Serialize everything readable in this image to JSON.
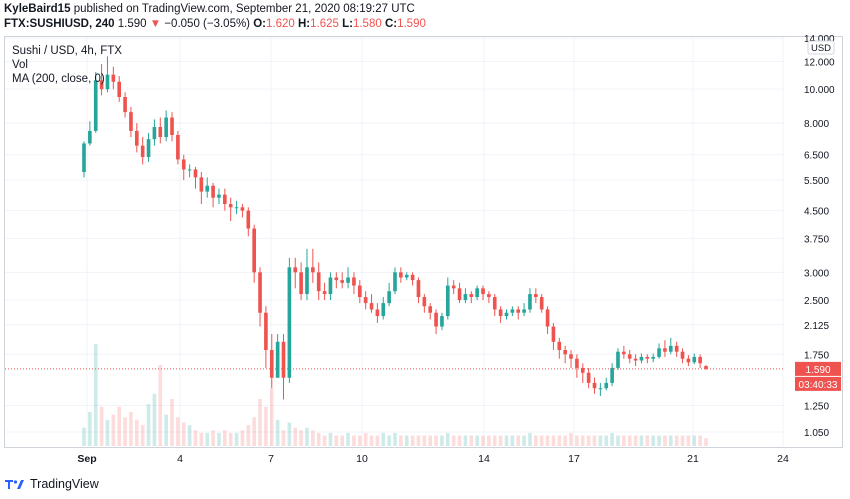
{
  "header": {
    "publisher": "KyleBaird15",
    "published_text": "published on TradingView.com, September 21, 2020 08:19:27 UTC"
  },
  "ohlc": {
    "symbol": "FTX:SUSHIUSD, 240",
    "last": "1.590",
    "change": "−0.050 (−3.05%)",
    "o_label": "O:",
    "o": "1.620",
    "h_label": "H:",
    "h": "1.625",
    "l_label": "L:",
    "l": "1.580",
    "c_label": "C:",
    "c": "1.590"
  },
  "legend": {
    "series": "Sushi / USD, 4h, FTX",
    "vol": "Vol",
    "ma": "MA (200, close, 0)"
  },
  "footer": {
    "brand": "TradingView"
  },
  "colors": {
    "up": "#26a69a",
    "down": "#ef5350",
    "grid": "#f0f3fa",
    "text": "#131722"
  },
  "chart_data": {
    "type": "candlestick",
    "y_scale": "log",
    "currency": "USD",
    "y_ticks": [
      "14.000",
      "12.000",
      "10.000",
      "8.000",
      "6.500",
      "5.500",
      "4.500",
      "3.750",
      "3.000",
      "2.500",
      "2.125",
      "1.750",
      "1.250",
      "1.050"
    ],
    "x_ticks": [
      "Sep",
      "4",
      "7",
      "10",
      "14",
      "17",
      "21",
      "24"
    ],
    "last_price": "1.590",
    "countdown": "03:40:33",
    "candles": [
      [
        5.8,
        7.0,
        5.6,
        7.1
      ],
      [
        7.0,
        7.6,
        6.9,
        8.1
      ],
      [
        7.6,
        10.6,
        7.5,
        11.2
      ],
      [
        10.6,
        10.0,
        9.6,
        11.8
      ],
      [
        10.0,
        11.0,
        9.8,
        12.4
      ],
      [
        11.0,
        10.5,
        10.0,
        11.6
      ],
      [
        10.5,
        9.5,
        9.2,
        10.9
      ],
      [
        9.5,
        8.6,
        8.3,
        9.8
      ],
      [
        8.6,
        7.6,
        7.3,
        8.9
      ],
      [
        7.6,
        6.9,
        6.6,
        8.0
      ],
      [
        6.9,
        6.4,
        6.1,
        7.3
      ],
      [
        6.4,
        7.2,
        6.2,
        7.5
      ],
      [
        7.2,
        7.8,
        6.9,
        8.2
      ],
      [
        7.8,
        7.3,
        7.0,
        8.3
      ],
      [
        7.3,
        8.3,
        7.1,
        8.7
      ],
      [
        8.3,
        7.4,
        7.1,
        8.6
      ],
      [
        7.4,
        6.3,
        6.1,
        7.6
      ],
      [
        6.3,
        5.9,
        5.5,
        6.5
      ],
      [
        5.9,
        5.9,
        5.6,
        6.1
      ],
      [
        5.9,
        5.6,
        5.2,
        6.0
      ],
      [
        5.6,
        5.1,
        4.7,
        5.8
      ],
      [
        5.1,
        5.3,
        4.9,
        5.6
      ],
      [
        5.3,
        4.9,
        4.6,
        5.4
      ],
      [
        4.9,
        5.0,
        4.7,
        5.2
      ],
      [
        5.0,
        4.7,
        4.5,
        5.2
      ],
      [
        4.7,
        4.6,
        4.2,
        4.9
      ],
      [
        4.6,
        4.6,
        4.4,
        4.8
      ],
      [
        4.6,
        4.5,
        4.3,
        4.7
      ],
      [
        4.5,
        4.0,
        3.8,
        4.6
      ],
      [
        4.0,
        3.0,
        2.8,
        4.1
      ],
      [
        3.0,
        2.3,
        2.1,
        3.1
      ],
      [
        2.3,
        1.8,
        1.6,
        2.4
      ],
      [
        1.8,
        1.5,
        1.4,
        2.0
      ],
      [
        1.5,
        1.9,
        1.5,
        2.0
      ],
      [
        1.9,
        1.5,
        1.3,
        2.0
      ],
      [
        1.5,
        3.1,
        1.45,
        3.3
      ],
      [
        3.1,
        3.0,
        2.7,
        3.3
      ],
      [
        3.0,
        2.6,
        2.5,
        3.2
      ],
      [
        2.6,
        3.1,
        2.5,
        3.5
      ],
      [
        3.1,
        3.0,
        2.8,
        3.5
      ],
      [
        3.0,
        2.65,
        2.5,
        3.2
      ],
      [
        2.65,
        2.6,
        2.5,
        2.8
      ],
      [
        2.6,
        2.9,
        2.5,
        3.0
      ],
      [
        2.9,
        2.85,
        2.7,
        3.0
      ],
      [
        2.85,
        2.8,
        2.7,
        3.0
      ],
      [
        2.8,
        2.9,
        2.7,
        3.1
      ],
      [
        2.9,
        2.75,
        2.6,
        3.0
      ],
      [
        2.75,
        2.55,
        2.45,
        2.85
      ],
      [
        2.55,
        2.45,
        2.35,
        2.65
      ],
      [
        2.45,
        2.35,
        2.3,
        2.6
      ],
      [
        2.35,
        2.25,
        2.15,
        2.45
      ],
      [
        2.25,
        2.45,
        2.2,
        2.55
      ],
      [
        2.45,
        2.65,
        2.4,
        2.8
      ],
      [
        2.65,
        3.0,
        2.6,
        3.1
      ],
      [
        3.0,
        2.9,
        2.8,
        3.1
      ],
      [
        2.9,
        2.95,
        2.85,
        3.0
      ],
      [
        2.95,
        2.85,
        2.75,
        3.0
      ],
      [
        2.85,
        2.55,
        2.45,
        2.9
      ],
      [
        2.55,
        2.4,
        2.3,
        2.6
      ],
      [
        2.4,
        2.3,
        2.2,
        2.45
      ],
      [
        2.3,
        2.1,
        2.0,
        2.35
      ],
      [
        2.1,
        2.25,
        2.05,
        2.3
      ],
      [
        2.25,
        2.75,
        2.2,
        2.9
      ],
      [
        2.75,
        2.7,
        2.6,
        2.85
      ],
      [
        2.7,
        2.5,
        2.45,
        2.8
      ],
      [
        2.5,
        2.6,
        2.45,
        2.7
      ],
      [
        2.6,
        2.55,
        2.45,
        2.65
      ],
      [
        2.55,
        2.7,
        2.5,
        2.75
      ],
      [
        2.7,
        2.6,
        2.5,
        2.75
      ],
      [
        2.6,
        2.55,
        2.45,
        2.65
      ],
      [
        2.55,
        2.35,
        2.25,
        2.6
      ],
      [
        2.35,
        2.25,
        2.15,
        2.4
      ],
      [
        2.25,
        2.3,
        2.2,
        2.35
      ],
      [
        2.3,
        2.35,
        2.25,
        2.4
      ],
      [
        2.35,
        2.3,
        2.2,
        2.4
      ],
      [
        2.3,
        2.35,
        2.25,
        2.45
      ],
      [
        2.35,
        2.6,
        2.3,
        2.7
      ],
      [
        2.6,
        2.55,
        2.45,
        2.7
      ],
      [
        2.55,
        2.35,
        2.3,
        2.6
      ],
      [
        2.35,
        2.1,
        2.0,
        2.4
      ],
      [
        2.1,
        1.9,
        1.8,
        2.15
      ],
      [
        1.9,
        1.8,
        1.7,
        1.95
      ],
      [
        1.8,
        1.75,
        1.65,
        1.85
      ],
      [
        1.75,
        1.7,
        1.6,
        1.8
      ],
      [
        1.7,
        1.6,
        1.5,
        1.75
      ],
      [
        1.6,
        1.55,
        1.45,
        1.65
      ],
      [
        1.55,
        1.45,
        1.4,
        1.6
      ],
      [
        1.45,
        1.4,
        1.35,
        1.5
      ],
      [
        1.4,
        1.4,
        1.33,
        1.45
      ],
      [
        1.4,
        1.45,
        1.38,
        1.5
      ],
      [
        1.45,
        1.6,
        1.42,
        1.65
      ],
      [
        1.6,
        1.78,
        1.58,
        1.82
      ],
      [
        1.78,
        1.75,
        1.7,
        1.85
      ],
      [
        1.75,
        1.7,
        1.65,
        1.8
      ],
      [
        1.7,
        1.68,
        1.62,
        1.75
      ],
      [
        1.68,
        1.72,
        1.65,
        1.76
      ],
      [
        1.72,
        1.7,
        1.65,
        1.75
      ],
      [
        1.7,
        1.72,
        1.66,
        1.76
      ],
      [
        1.72,
        1.82,
        1.7,
        1.88
      ],
      [
        1.82,
        1.78,
        1.72,
        1.92
      ],
      [
        1.78,
        1.85,
        1.75,
        1.95
      ],
      [
        1.85,
        1.78,
        1.72,
        1.9
      ],
      [
        1.78,
        1.7,
        1.65,
        1.82
      ],
      [
        1.7,
        1.66,
        1.62,
        1.74
      ],
      [
        1.66,
        1.72,
        1.64,
        1.76
      ],
      [
        1.72,
        1.65,
        1.6,
        1.75
      ],
      [
        1.62,
        1.59,
        1.58,
        1.63
      ]
    ],
    "volume": [
      14,
      26,
      78,
      30,
      20,
      24,
      30,
      22,
      26,
      20,
      16,
      32,
      40,
      62,
      24,
      36,
      22,
      18,
      16,
      12,
      10,
      10,
      12,
      10,
      12,
      10,
      10,
      12,
      16,
      22,
      36,
      30,
      44,
      20,
      12,
      18,
      14,
      12,
      14,
      12,
      10,
      8,
      10,
      8,
      8,
      10,
      8,
      8,
      10,
      8,
      8,
      10,
      8,
      10,
      8,
      8,
      8,
      8,
      8,
      8,
      8,
      8,
      10,
      8,
      8,
      8,
      8,
      8,
      8,
      8,
      8,
      8,
      8,
      8,
      8,
      8,
      10,
      8,
      8,
      8,
      8,
      8,
      8,
      10,
      8,
      8,
      8,
      8,
      8,
      8,
      10,
      8,
      8,
      8,
      8,
      8,
      8,
      8,
      8,
      8,
      8,
      8,
      8,
      8,
      8,
      8,
      6
    ]
  }
}
